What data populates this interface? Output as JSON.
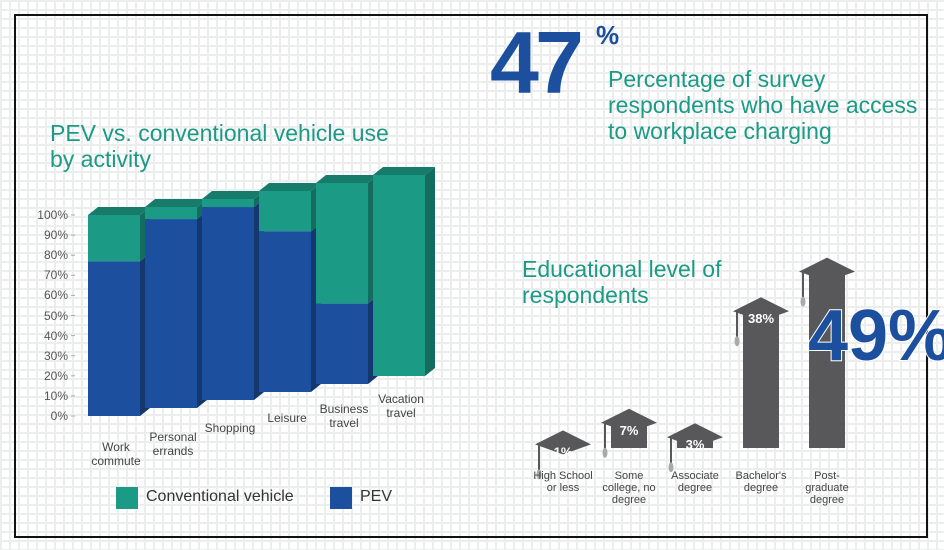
{
  "stat": {
    "value": 47,
    "unit": "%",
    "text": "Percentage of survey respondents who have access to workplace charging"
  },
  "chart_data": [
    {
      "type": "stacked_bar",
      "title": "PEV vs. conventional vehicle use by activity",
      "categories": [
        "Work commute",
        "Personal errands",
        "Shopping",
        "Leisure",
        "Business travel",
        "Vacation travel"
      ],
      "series": [
        {
          "name": "PEV",
          "color": "#1c4f9d",
          "values": [
            77,
            94,
            96,
            80,
            40,
            0
          ]
        },
        {
          "name": "Conventional vehicle",
          "color": "#1b9a86",
          "values": [
            23,
            6,
            4,
            20,
            60,
            100
          ]
        }
      ],
      "ylim": [
        0,
        100
      ],
      "yticks": [
        {
          "value": 0,
          "label": "0%"
        },
        {
          "value": 10,
          "label": "10%"
        },
        {
          "value": 20,
          "label": "20%"
        },
        {
          "value": 30,
          "label": "30%"
        },
        {
          "value": 40,
          "label": "40%"
        },
        {
          "value": 50,
          "label": "50%"
        },
        {
          "value": 60,
          "label": "60%"
        },
        {
          "value": 70,
          "label": "70%"
        },
        {
          "value": 80,
          "label": "80%"
        },
        {
          "value": 90,
          "label": "90%"
        },
        {
          "value": 100,
          "label": "100%"
        }
      ]
    },
    {
      "type": "cap_bar",
      "title": "Educational level of respondents",
      "categories": [
        "High School or less",
        "Some college, no degree",
        "Associate degree",
        "Bachelor's degree",
        "Post-graduate degree"
      ],
      "values": [
        1,
        7,
        3,
        38,
        49
      ],
      "value_labels": [
        "1%",
        "7%",
        "3%",
        "38%",
        "49%"
      ],
      "color": "#58585a"
    }
  ]
}
